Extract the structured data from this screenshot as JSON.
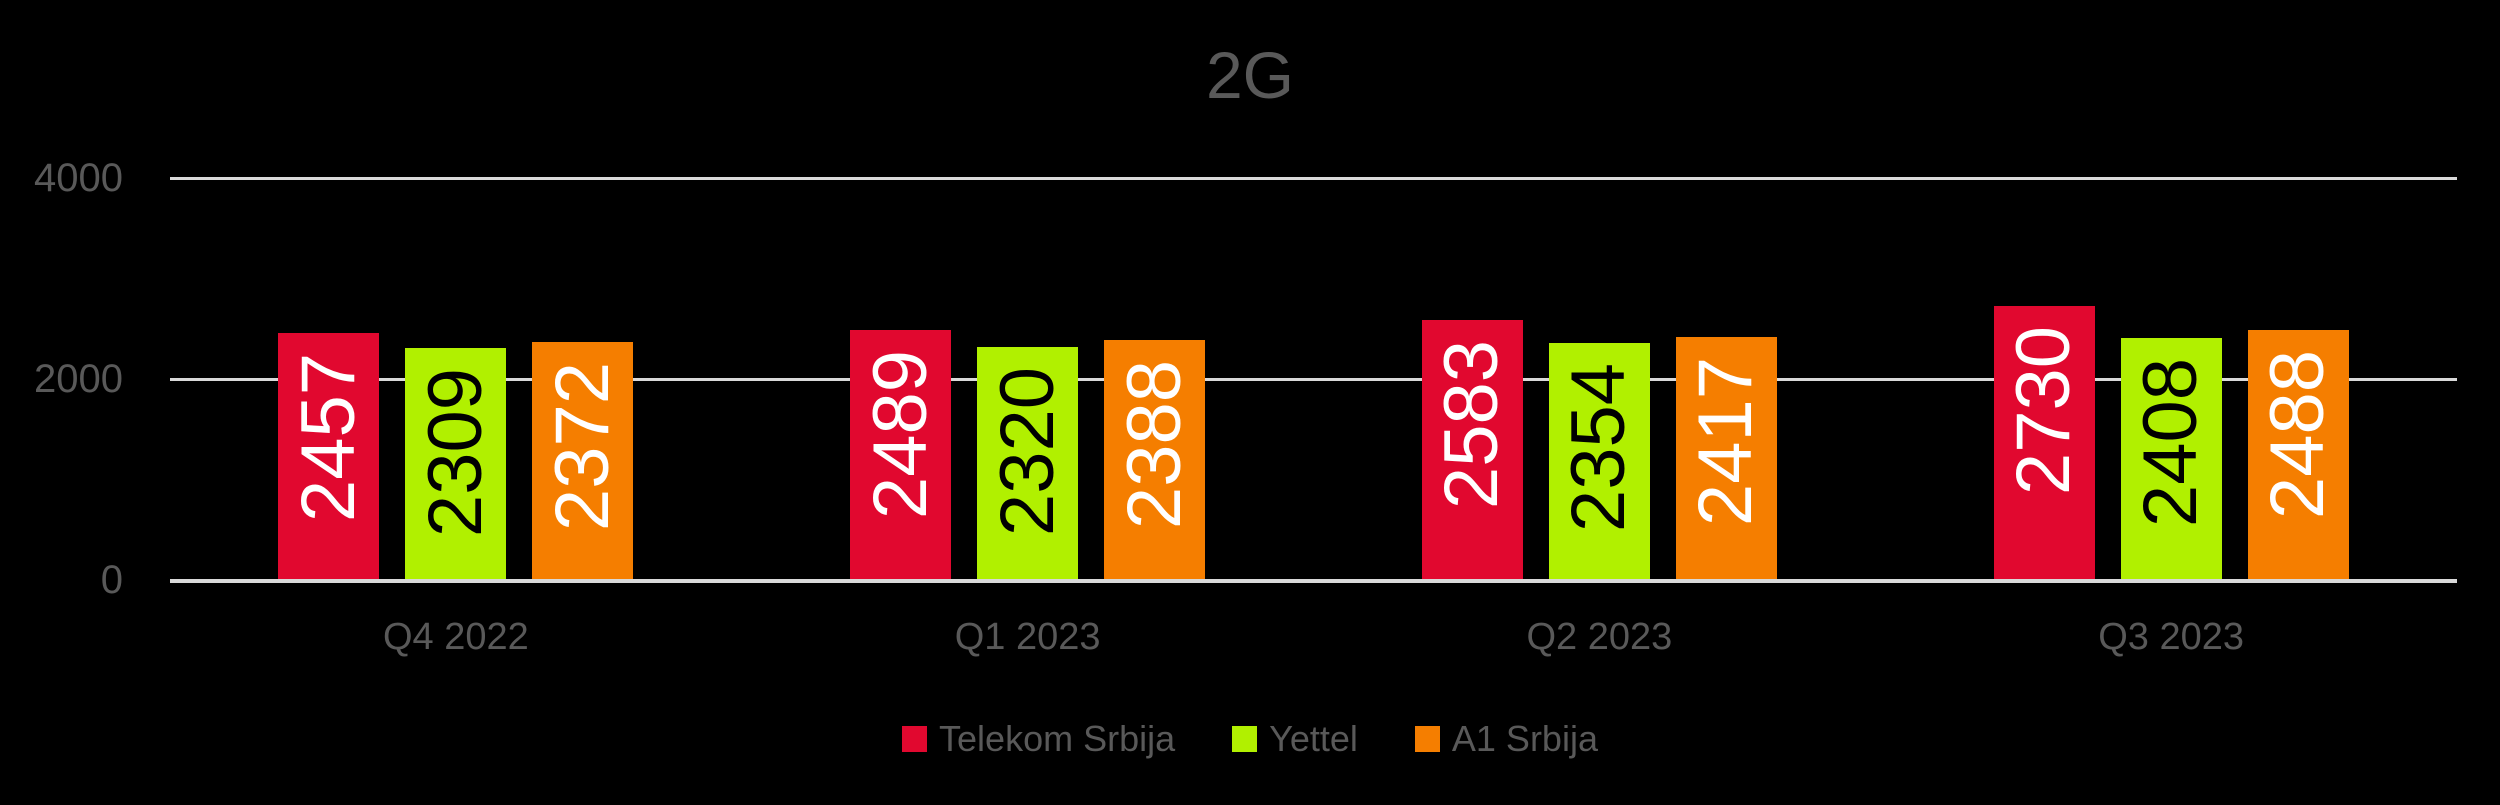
{
  "chart_data": {
    "type": "bar",
    "title": "2G",
    "categories": [
      "Q4 2022",
      "Q1 2023",
      "Q2 2023",
      "Q3 2023"
    ],
    "series": [
      {
        "name": "Telekom Srbija",
        "color": "#E1082F",
        "label_color": "#FFFFFF",
        "values": [
          2457,
          2489,
          2583,
          2730
        ]
      },
      {
        "name": "Yettel",
        "color": "#B1F000",
        "label_color": "#000000",
        "values": [
          2309,
          2320,
          2354,
          2408
        ]
      },
      {
        "name": "A1 Srbija",
        "color": "#F57E00",
        "label_color": "#FFFFFF",
        "values": [
          2372,
          2388,
          2417,
          2488
        ]
      }
    ],
    "y_axis": {
      "min": 0,
      "max": 4000,
      "ticks": [
        0,
        2000,
        4000
      ]
    },
    "grid": true,
    "legend_position": "bottom",
    "data_labels": {
      "rotation": "vertical-bottom-to-top",
      "position": "inside-end"
    },
    "colors": {
      "background": "#000000",
      "text": "#595959",
      "gridline": "#D9D9D9"
    }
  }
}
